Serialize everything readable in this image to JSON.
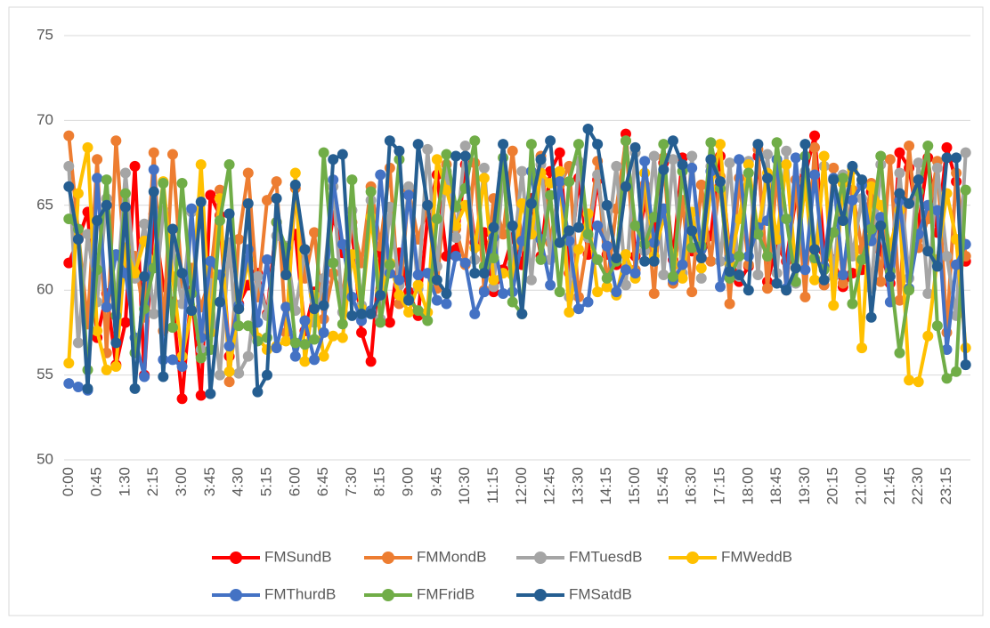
{
  "chart_data": {
    "type": "line",
    "categories": [
      "0:00",
      null,
      null,
      "0:45",
      null,
      null,
      "1:30",
      null,
      null,
      "2:15",
      null,
      null,
      "3:00",
      null,
      null,
      "3:45",
      null,
      null,
      "4:30",
      null,
      null,
      "5:15",
      null,
      null,
      "6:00",
      null,
      null,
      "6:45",
      null,
      null,
      "7:30",
      null,
      null,
      "8:15",
      null,
      null,
      "9:00",
      null,
      null,
      "9:45",
      null,
      null,
      "10:30",
      null,
      null,
      "11:15",
      null,
      null,
      "12:00",
      null,
      null,
      "12:45",
      null,
      null,
      "13:30",
      null,
      null,
      "14:15",
      null,
      null,
      "15:00",
      null,
      null,
      "15:45",
      null,
      null,
      "16:30",
      null,
      null,
      "17:15",
      null,
      null,
      "18:00",
      null,
      null,
      "18:45",
      null,
      null,
      "19:30",
      null,
      null,
      "20:15",
      null,
      null,
      "21:00",
      null,
      null,
      "21:45",
      null,
      null,
      "22:30",
      null,
      null,
      "23:15",
      null,
      null
    ],
    "ylim": [
      50,
      75
    ],
    "yticks": [
      50,
      55,
      60,
      65,
      70,
      75
    ],
    "grid": true,
    "series": [
      {
        "name": "FMSundB",
        "color": "#ff0000",
        "values": [
          61.6,
          63.0,
          64.6,
          57.2,
          59.8,
          55.6,
          58.1,
          67.3,
          55.0,
          64.5,
          60.2,
          59.3,
          53.6,
          60.0,
          53.8,
          65.6,
          64.4,
          56.1,
          59.2,
          60.3,
          61.0,
          58.6,
          64.0,
          62.3,
          63.3,
          57.6,
          59.9,
          60.5,
          64.4,
          62.2,
          63.6,
          57.5,
          55.8,
          62.2,
          58.1,
          62.2,
          59.9,
          58.5,
          64.3,
          66.8,
          62.0,
          62.4,
          67.4,
          62.8,
          63.4,
          59.9,
          61.2,
          63.1,
          61.5,
          65.4,
          62.0,
          67.0,
          68.1,
          61.0,
          66.6,
          62.1,
          66.5,
          62.1,
          61.5,
          69.2,
          62.0,
          65.1,
          63.4,
          67.5,
          61.8,
          67.8,
          62.3,
          61.9,
          63.2,
          67.9,
          62.1,
          60.5,
          61.4,
          67.9,
          60.5,
          62.6,
          61.7,
          65.4,
          66.8,
          69.1,
          62.3,
          61.8,
          60.2,
          61.0,
          61.2,
          65.8,
          62.3,
          60.4,
          68.1,
          67.2,
          63.8,
          67.8,
          63.4,
          68.4,
          66.4,
          61.7
        ]
      },
      {
        "name": "FMMondB",
        "color": "#ed7d31",
        "values": [
          69.1,
          63.4,
          58.0,
          67.7,
          56.3,
          68.8,
          61.0,
          62.0,
          58.4,
          68.1,
          57.6,
          68.0,
          60.4,
          61.3,
          59.0,
          60.8,
          65.9,
          54.6,
          63.0,
          66.9,
          59.6,
          65.3,
          66.4,
          57.5,
          66.0,
          60.7,
          63.4,
          58.3,
          61.0,
          59.6,
          64.0,
          61.6,
          66.1,
          62.6,
          67.2,
          59.2,
          65.9,
          63.0,
          64.9,
          60.1,
          67.4,
          63.6,
          61.5,
          67.5,
          60.0,
          65.4,
          63.3,
          68.2,
          62.6,
          64.9,
          67.9,
          62.8,
          66.2,
          67.3,
          59.6,
          63.1,
          67.6,
          60.2,
          64.8,
          68.8,
          61.2,
          66.2,
          59.8,
          67.8,
          60.4,
          65.3,
          59.9,
          66.2,
          61.7,
          66.7,
          59.2,
          66.6,
          61.5,
          68.3,
          60.1,
          66.8,
          60.0,
          66.5,
          59.6,
          68.4,
          60.3,
          67.2,
          60.4,
          65.9,
          62.4,
          66.3,
          60.5,
          67.7,
          59.4,
          68.5,
          62.5,
          64.2,
          67.6,
          57.5,
          66.9,
          62.0
        ]
      },
      {
        "name": "FMTuesdB",
        "color": "#a5a5a5",
        "values": [
          67.3,
          56.9,
          63.3,
          59.3,
          65.4,
          59.1,
          66.9,
          60.7,
          63.9,
          58.6,
          64.7,
          62.5,
          59.2,
          64.6,
          56.5,
          60.4,
          55.0,
          62.8,
          55.1,
          56.1,
          60.8,
          58.5,
          63.2,
          62.6,
          58.8,
          62.3,
          58.1,
          60.7,
          66.1,
          58.7,
          64.7,
          59.1,
          65.3,
          58.3,
          64.9,
          60.3,
          66.1,
          60.1,
          68.3,
          61.4,
          67.0,
          63.1,
          68.5,
          61.8,
          67.2,
          60.2,
          66.9,
          61.5,
          67.0,
          60.6,
          67.4,
          61.8,
          66.8,
          59.6,
          67.6,
          63.1,
          66.8,
          62.6,
          67.3,
          60.3,
          68.1,
          62.3,
          67.9,
          60.9,
          67.7,
          61.0,
          67.9,
          60.7,
          67.3,
          61.7,
          67.5,
          60.8,
          67.6,
          60.9,
          68.0,
          61.0,
          68.2,
          60.4,
          67.0,
          61.8,
          67.3,
          60.8,
          66.8,
          62.0,
          65.4,
          60.1,
          67.4,
          61.2,
          66.9,
          60.7,
          67.5,
          59.8,
          67.2,
          62.0,
          58.5,
          68.1
        ]
      },
      {
        "name": "FMWeddB",
        "color": "#ffc000",
        "values": [
          55.7,
          65.7,
          68.4,
          57.6,
          55.3,
          55.5,
          62.5,
          61.0,
          62.9,
          61.6,
          66.4,
          60.8,
          56.1,
          58.8,
          67.4,
          57.5,
          65.4,
          55.2,
          58.9,
          61.8,
          57.2,
          56.5,
          56.7,
          57.0,
          66.9,
          55.8,
          59.7,
          56.1,
          57.3,
          57.2,
          62.1,
          58.9,
          64.3,
          59.9,
          61.6,
          59.7,
          58.7,
          60.3,
          58.7,
          67.7,
          65.9,
          63.8,
          65.0,
          62.5,
          66.6,
          60.6,
          61.0,
          60.9,
          65.1,
          63.3,
          66.9,
          66.3,
          67.0,
          58.7,
          62.4,
          64.5,
          59.9,
          60.2,
          59.7,
          62.1,
          60.7,
          66.9,
          62.0,
          64.3,
          62.1,
          60.7,
          64.6,
          61.3,
          66.0,
          68.6,
          61.5,
          64.2,
          67.4,
          63.4,
          66.9,
          63.0,
          67.4,
          61.3,
          66.3,
          60.6,
          67.9,
          59.1,
          66.3,
          67.1,
          56.6,
          66.1,
          65.0,
          62.6,
          64.7,
          54.7,
          54.6,
          57.3,
          61.8,
          65.7,
          63.0,
          56.6
        ]
      },
      {
        "name": "FMThurdB",
        "color": "#4472c4",
        "values": [
          54.5,
          54.3,
          54.1,
          66.6,
          59.0,
          62.1,
          61.0,
          57.2,
          54.9,
          67.1,
          55.9,
          55.9,
          55.5,
          64.8,
          57.2,
          61.7,
          60.9,
          56.7,
          59.1,
          62.4,
          58.1,
          61.8,
          56.6,
          59.0,
          56.1,
          58.2,
          55.9,
          57.5,
          66.5,
          62.7,
          59.6,
          58.2,
          58.8,
          66.8,
          61.0,
          60.6,
          65.6,
          60.9,
          61.0,
          59.4,
          59.2,
          62.0,
          61.6,
          58.6,
          59.9,
          63.1,
          59.8,
          59.9,
          62.9,
          67.0,
          63.0,
          60.3,
          66.4,
          62.9,
          58.9,
          59.3,
          63.8,
          62.6,
          59.9,
          61.2,
          61.0,
          67.6,
          62.8,
          64.8,
          60.6,
          61.5,
          67.2,
          62.4,
          67.0,
          60.2,
          61.9,
          67.7,
          62.0,
          63.7,
          64.1,
          67.7,
          60.1,
          67.8,
          61.2,
          66.8,
          61.4,
          66.6,
          60.9,
          65.3,
          66.2,
          62.9,
          64.3,
          59.3,
          65.3,
          60.1,
          63.3,
          65.0,
          64.7,
          56.5,
          61.5,
          62.7
        ]
      },
      {
        "name": "FMFridB",
        "color": "#70ad47",
        "values": [
          64.2,
          63.6,
          55.3,
          61.2,
          66.5,
          58.5,
          65.7,
          56.3,
          58.9,
          61.3,
          66.3,
          57.8,
          66.3,
          59.8,
          56.0,
          56.5,
          64.1,
          67.4,
          57.9,
          57.9,
          57.0,
          57.2,
          64.0,
          62.5,
          56.9,
          56.8,
          57.1,
          68.1,
          61.6,
          58.0,
          66.5,
          58.6,
          65.8,
          58.1,
          61.5,
          67.7,
          59.5,
          58.8,
          58.2,
          64.2,
          68.0,
          64.9,
          66.0,
          68.8,
          61.4,
          61.9,
          67.8,
          59.3,
          58.6,
          68.6,
          61.8,
          65.6,
          59.9,
          66.4,
          68.6,
          63.3,
          61.8,
          60.7,
          61.7,
          68.8,
          63.8,
          62.7,
          64.3,
          68.6,
          60.8,
          67.0,
          62.5,
          62.6,
          68.7,
          66.0,
          60.7,
          62.0,
          66.9,
          63.3,
          62.0,
          68.7,
          64.2,
          60.5,
          67.9,
          61.9,
          61.2,
          63.4,
          66.6,
          59.2,
          61.8,
          63.6,
          67.9,
          61.1,
          56.3,
          60.0,
          65.8,
          68.5,
          57.9,
          54.8,
          55.2,
          65.9
        ]
      },
      {
        "name": "FMSatdB",
        "color": "#255e91",
        "values": [
          66.1,
          63.0,
          54.2,
          64.1,
          65.0,
          56.9,
          64.9,
          54.2,
          60.8,
          65.8,
          54.9,
          63.6,
          61.0,
          58.8,
          65.2,
          53.9,
          59.3,
          64.5,
          58.9,
          65.1,
          54.0,
          55.0,
          65.4,
          60.9,
          66.2,
          62.4,
          58.9,
          59.1,
          67.7,
          68.0,
          58.5,
          58.6,
          58.6,
          59.7,
          68.8,
          68.2,
          59.4,
          68.6,
          65.0,
          60.6,
          59.8,
          67.9,
          67.9,
          61.0,
          61.0,
          63.7,
          68.6,
          63.8,
          58.6,
          65.1,
          67.7,
          68.8,
          62.8,
          63.5,
          63.7,
          69.5,
          68.6,
          65.0,
          61.9,
          66.1,
          68.4,
          61.7,
          61.7,
          67.1,
          68.8,
          67.4,
          63.5,
          61.9,
          67.7,
          66.4,
          61.1,
          60.9,
          60.0,
          68.6,
          66.6,
          60.4,
          60.0,
          61.3,
          68.6,
          62.4,
          60.6,
          66.5,
          64.1,
          67.3,
          66.5,
          58.4,
          63.8,
          60.8,
          65.7,
          65.1,
          66.5,
          62.3,
          61.4,
          67.8,
          67.8,
          55.6
        ]
      }
    ]
  }
}
